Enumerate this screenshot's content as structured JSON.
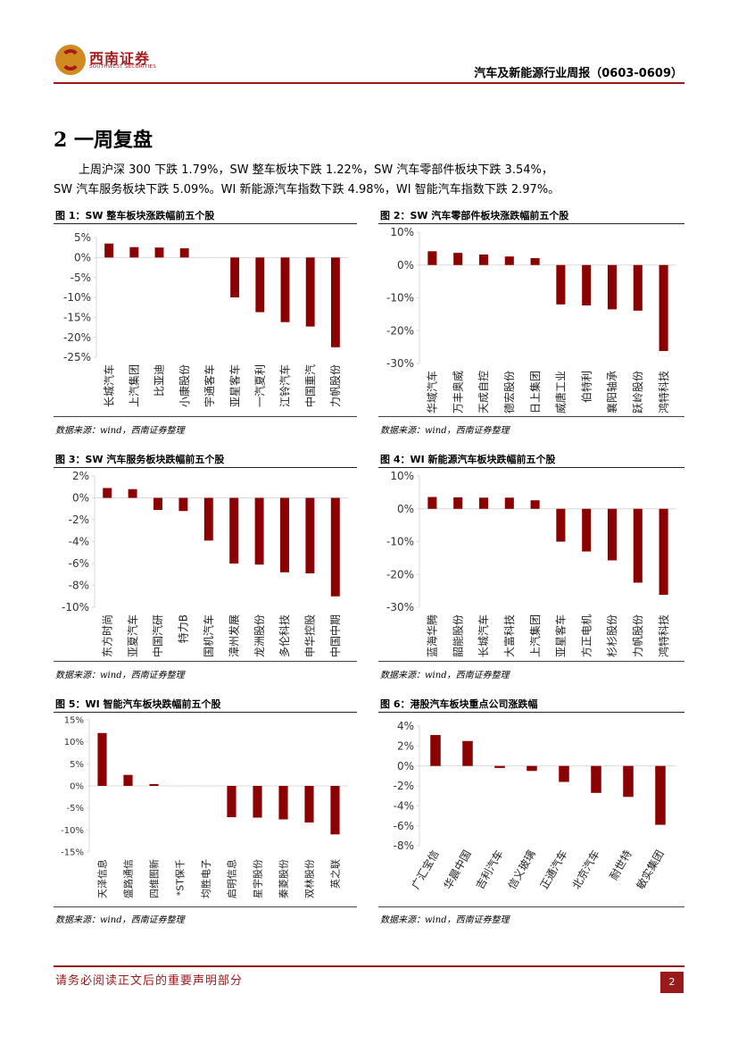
{
  "header": {
    "logo_cn": "西南证券",
    "logo_en": "SOUTHWEST SECURITIES",
    "report_title": "汽车及新能源行业周报（0603-0609）"
  },
  "section": {
    "title": "2  一周复盘",
    "para_line1": "上周沪深 300 下跌 1.79%，SW 整车板块下跌 1.22%，SW 汽车零部件板块下跌 3.54%，",
    "para_line2": "SW 汽车服务板块下跌 5.09%。WI 新能源汽车指数下跌 4.98%，WI 智能汽车指数下跌 2.97%。"
  },
  "figures": [
    {
      "title": "图 1：SW 整车板块涨跌幅前五个股",
      "source": "数据来源：wind，西南证券整理"
    },
    {
      "title": "图 2：SW 汽车零部件板块涨跌幅前五个股",
      "source": "数据来源：wind，西南证券整理"
    },
    {
      "title": "图 3：SW 汽车服务板块跌幅前五个股",
      "source": "数据来源：wind，西南证券整理"
    },
    {
      "title": "图 4：WI 新能源汽车板块跌幅前五个股",
      "source": "数据来源：wind，西南证券整理"
    },
    {
      "title": "图 5：WI 智能汽车板块跌幅前五个股",
      "source": "数据来源：wind，西南证券整理"
    },
    {
      "title": "图 6：港股汽车板块重点公司涨跌幅",
      "source": "数据来源：wind，西南证券整理"
    }
  ],
  "chart_data": [
    {
      "type": "bar",
      "title": "图 1：SW 整车板块涨跌幅前五个股",
      "categories": [
        "长城汽车",
        "上汽集团",
        "比亚迪",
        "小康股份",
        "宇通客车",
        "亚星客车",
        "一汽夏利",
        "江铃汽车",
        "中国重汽",
        "力帆股份"
      ],
      "values": [
        3.5,
        2.6,
        2.5,
        2.3,
        0,
        -10.0,
        -13.7,
        -16.2,
        -17.3,
        -22.5
      ],
      "ylim": [
        -25,
        5
      ],
      "ticks": [
        5,
        0,
        -5,
        -10,
        -15,
        -20,
        -25
      ],
      "unit": "%",
      "decimals": 0,
      "color": "#8b0000"
    },
    {
      "type": "bar",
      "title": "图 2：SW 汽车零部件板块涨跌幅前五个股",
      "categories": [
        "华域汽车",
        "万丰奥威",
        "天成自控",
        "德宏股份",
        "日上集团",
        "威唐工业",
        "伯特利",
        "襄阳轴承",
        "跃岭股份",
        "鸿特科技"
      ],
      "values": [
        4.2,
        3.7,
        3.2,
        2.6,
        2.1,
        -12.0,
        -12.3,
        -13.5,
        -13.9,
        -26.2
      ],
      "ylim": [
        -30,
        10
      ],
      "ticks": [
        10,
        0,
        -10,
        -20,
        -30
      ],
      "unit": "%",
      "decimals": 0,
      "color": "#8b0000"
    },
    {
      "type": "bar",
      "title": "图 3：SW 汽车服务板块跌幅前五个股",
      "categories": [
        "东方时尚",
        "亚夏汽车",
        "中国汽研",
        "特力B",
        "国机汽车",
        "漳州发展",
        "龙洲股份",
        "多伦科技",
        "申华控股",
        "中国中期"
      ],
      "values": [
        0.9,
        0.8,
        -1.1,
        -1.2,
        -3.9,
        -6.0,
        -6.1,
        -6.8,
        -6.9,
        -9.0
      ],
      "ylim": [
        -10,
        2
      ],
      "ticks": [
        2,
        0,
        -2,
        -4,
        -6,
        -8,
        -10
      ],
      "unit": "%",
      "decimals": 0,
      "color": "#8b0000"
    },
    {
      "type": "bar",
      "title": "图 4：WI 新能源汽车板块跌幅前五个股",
      "categories": [
        "蓝海华腾",
        "韶能股份",
        "长城汽车",
        "大富科技",
        "上汽集团",
        "亚星客车",
        "方正电机",
        "杉杉股份",
        "力帆股份",
        "鸿特科技"
      ],
      "values": [
        3.6,
        3.5,
        3.4,
        3.4,
        2.6,
        -10.0,
        -13.0,
        -15.7,
        -22.5,
        -26.2
      ],
      "ylim": [
        -30,
        10
      ],
      "ticks": [
        10,
        0,
        -10,
        -20,
        -30
      ],
      "unit": "%",
      "decimals": 0,
      "color": "#8b0000"
    },
    {
      "type": "bar",
      "title": "图 5：WI 智能汽车板块跌幅前五个股",
      "categories": [
        "天泽信息",
        "盛路通信",
        "四维图新",
        "*ST保千",
        "均胜电子",
        "启明信息",
        "星宇股份",
        "秦菱股份",
        "双林股份",
        "英之联"
      ],
      "values": [
        12.0,
        2.5,
        0.4,
        0,
        0,
        -7.1,
        -7.2,
        -7.6,
        -8.3,
        -11.0
      ],
      "ylim": [
        -15,
        15
      ],
      "ticks": [
        15,
        10,
        5,
        0,
        -5,
        -10,
        -15
      ],
      "unit": "%",
      "decimals": 0,
      "color": "#8b0000"
    },
    {
      "type": "bar",
      "title": "图 6：港股汽车板块重点公司涨跌幅",
      "categories": [
        "广汇宝信",
        "华晨中国",
        "吉利汽车",
        "信义玻璃",
        "正通汽车",
        "北京汽车",
        "耐世特",
        "敏实集团"
      ],
      "values": [
        3.1,
        2.5,
        -0.2,
        -0.5,
        -1.6,
        -2.7,
        -3.1,
        -5.9
      ],
      "ylim": [
        -8,
        4
      ],
      "ticks": [
        4,
        2,
        0,
        -2,
        -4,
        -6,
        -8
      ],
      "unit": "%",
      "decimals": 0,
      "color": "#8b0000"
    }
  ],
  "footer": {
    "disclaimer": "请务必阅读正文后的重要声明部分",
    "page": "2"
  }
}
